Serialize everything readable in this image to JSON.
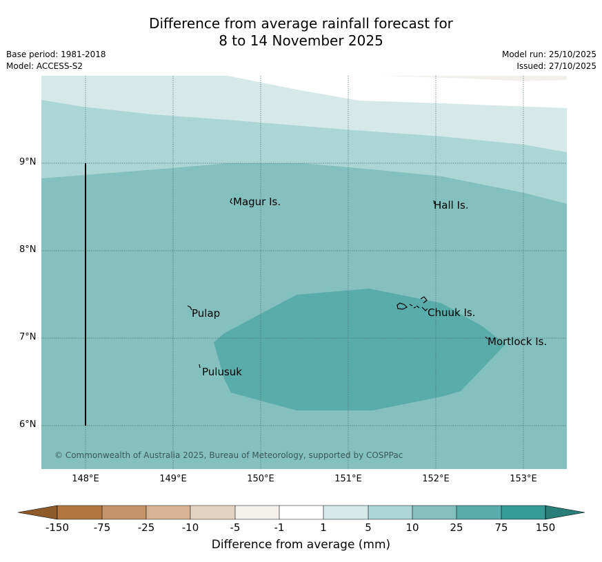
{
  "title": {
    "line1": "Difference from average rainfall forecast for",
    "line2": "8 to 14 November 2025"
  },
  "meta": {
    "base_period": "Base period: 1981-2018",
    "model": "Model: ACCESS-S2",
    "model_run": "Model run: 25/10/2025",
    "issued": "Issued: 27/10/2025"
  },
  "map": {
    "lat_labels": [
      "9°N",
      "8°N",
      "7°N",
      "6°N"
    ],
    "lon_labels": [
      "148°E",
      "149°E",
      "150°E",
      "151°E",
      "152°E",
      "153°E"
    ],
    "places": {
      "magur": "Magur Is.",
      "hall": "Hall Is.",
      "pulap": "Pulap",
      "chuuk": "Chuuk Is.",
      "mortlock": "Mortlock Is.",
      "pulusuk": "Pulusuk"
    },
    "copyright": "© Commonwealth of Australia 2025, Bureau of Meteorology, supported by COSPPac"
  },
  "legend": {
    "title": "Difference from average (mm)",
    "ticks": [
      "-150",
      "-75",
      "-25",
      "-10",
      "-5",
      "-1",
      "1",
      "5",
      "10",
      "25",
      "75",
      "150"
    ],
    "colors": {
      "lt_minus150": "#8f5a2a",
      "minus150_minus75": "#b07840",
      "minus75_minus25": "#c39468",
      "minus25_minus10": "#d5b394",
      "minus10_minus5": "#e5d3c2",
      "minus5_minus1": "#f3efea",
      "minus1_1": "#ffffff",
      "1_5": "#d4e9e8",
      "5_10": "#acd6d5",
      "10_25": "#84c0bf",
      "25_75": "#5aacab",
      "75_150": "#359995",
      "gt_150": "#2a7d79"
    }
  }
}
